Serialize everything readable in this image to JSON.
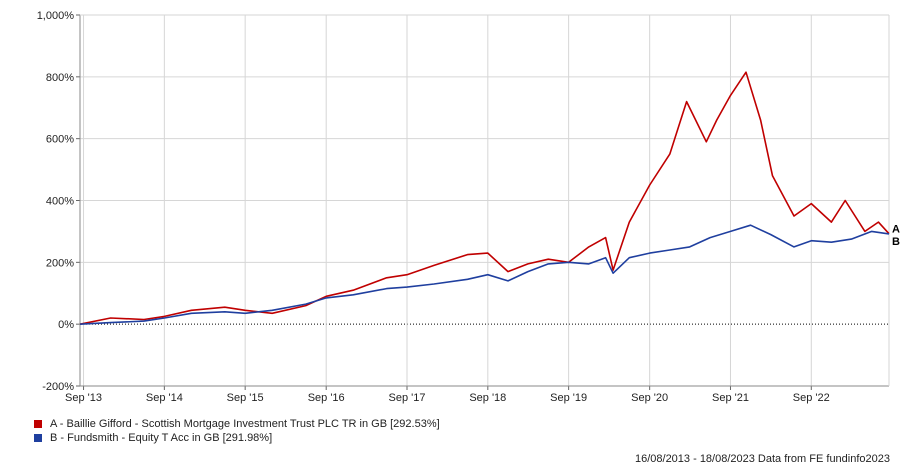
{
  "chart_data": {
    "type": "line",
    "y_axis": {
      "ticks": [
        "1,000%",
        "800%",
        "600%",
        "400%",
        "200%",
        "0%",
        "-200%"
      ],
      "tick_values": [
        1000,
        800,
        600,
        400,
        200,
        0,
        -200
      ],
      "range": [
        -200,
        1000
      ],
      "zero_line": "dotted"
    },
    "x_axis": {
      "ticks": [
        "Sep '13",
        "Sep '14",
        "Sep '15",
        "Sep '16",
        "Sep '17",
        "Sep '18",
        "Sep '19",
        "Sep '20",
        "Sep '21",
        "Sep '22"
      ],
      "tick_dates": [
        "2013-09-01",
        "2014-09-01",
        "2015-09-01",
        "2016-09-01",
        "2017-09-01",
        "2018-09-01",
        "2019-09-01",
        "2020-09-01",
        "2021-09-01",
        "2022-09-01"
      ],
      "range": [
        "2013-08-16",
        "2023-08-18"
      ]
    },
    "grid": true,
    "series": [
      {
        "marker": "A",
        "name": "A - Baillie Gifford - Scottish Mortgage Investment Trust PLC TR in GB [292.53%]",
        "color": "#c00000",
        "points": [
          [
            "2013-08-16",
            0
          ],
          [
            "2014-01-01",
            20
          ],
          [
            "2014-06-01",
            15
          ],
          [
            "2014-09-01",
            25
          ],
          [
            "2015-01-01",
            45
          ],
          [
            "2015-06-01",
            55
          ],
          [
            "2015-09-01",
            45
          ],
          [
            "2016-01-01",
            35
          ],
          [
            "2016-06-01",
            60
          ],
          [
            "2016-09-01",
            90
          ],
          [
            "2017-01-01",
            110
          ],
          [
            "2017-06-01",
            150
          ],
          [
            "2017-09-01",
            160
          ],
          [
            "2018-01-01",
            190
          ],
          [
            "2018-06-01",
            225
          ],
          [
            "2018-09-01",
            230
          ],
          [
            "2018-12-01",
            170
          ],
          [
            "2019-03-01",
            195
          ],
          [
            "2019-06-01",
            210
          ],
          [
            "2019-09-01",
            200
          ],
          [
            "2019-12-01",
            250
          ],
          [
            "2020-02-15",
            280
          ],
          [
            "2020-03-20",
            175
          ],
          [
            "2020-06-01",
            330
          ],
          [
            "2020-09-01",
            450
          ],
          [
            "2020-12-01",
            550
          ],
          [
            "2021-02-15",
            720
          ],
          [
            "2021-05-15",
            590
          ],
          [
            "2021-07-01",
            660
          ],
          [
            "2021-09-01",
            740
          ],
          [
            "2021-11-10",
            815
          ],
          [
            "2022-01-15",
            660
          ],
          [
            "2022-03-10",
            480
          ],
          [
            "2022-06-15",
            350
          ],
          [
            "2022-09-01",
            390
          ],
          [
            "2022-12-01",
            330
          ],
          [
            "2023-02-01",
            400
          ],
          [
            "2023-05-01",
            300
          ],
          [
            "2023-07-01",
            330
          ],
          [
            "2023-08-18",
            292.53
          ]
        ]
      },
      {
        "marker": "B",
        "name": "B - Fundsmith - Equity T Acc in GB [291.98%]",
        "color": "#1f3f9f",
        "points": [
          [
            "2013-08-16",
            0
          ],
          [
            "2014-01-01",
            5
          ],
          [
            "2014-06-01",
            10
          ],
          [
            "2014-09-01",
            20
          ],
          [
            "2015-01-01",
            35
          ],
          [
            "2015-06-01",
            40
          ],
          [
            "2015-09-01",
            35
          ],
          [
            "2016-01-01",
            45
          ],
          [
            "2016-06-01",
            65
          ],
          [
            "2016-09-01",
            85
          ],
          [
            "2017-01-01",
            95
          ],
          [
            "2017-06-01",
            115
          ],
          [
            "2017-09-01",
            120
          ],
          [
            "2018-01-01",
            130
          ],
          [
            "2018-06-01",
            145
          ],
          [
            "2018-09-01",
            160
          ],
          [
            "2018-12-01",
            140
          ],
          [
            "2019-03-01",
            170
          ],
          [
            "2019-06-01",
            195
          ],
          [
            "2019-09-01",
            200
          ],
          [
            "2019-12-01",
            195
          ],
          [
            "2020-02-15",
            215
          ],
          [
            "2020-03-20",
            165
          ],
          [
            "2020-06-01",
            215
          ],
          [
            "2020-09-01",
            230
          ],
          [
            "2020-12-01",
            240
          ],
          [
            "2021-03-01",
            250
          ],
          [
            "2021-06-01",
            280
          ],
          [
            "2021-09-01",
            300
          ],
          [
            "2021-12-01",
            320
          ],
          [
            "2022-03-01",
            290
          ],
          [
            "2022-06-15",
            250
          ],
          [
            "2022-09-01",
            270
          ],
          [
            "2022-12-01",
            265
          ],
          [
            "2023-03-01",
            275
          ],
          [
            "2023-06-01",
            300
          ],
          [
            "2023-08-18",
            291.98
          ]
        ]
      }
    ],
    "legend_position": "bottom-left"
  },
  "footer": {
    "text": "16/08/2013 - 18/08/2023 Data from FE fundinfo2023"
  }
}
